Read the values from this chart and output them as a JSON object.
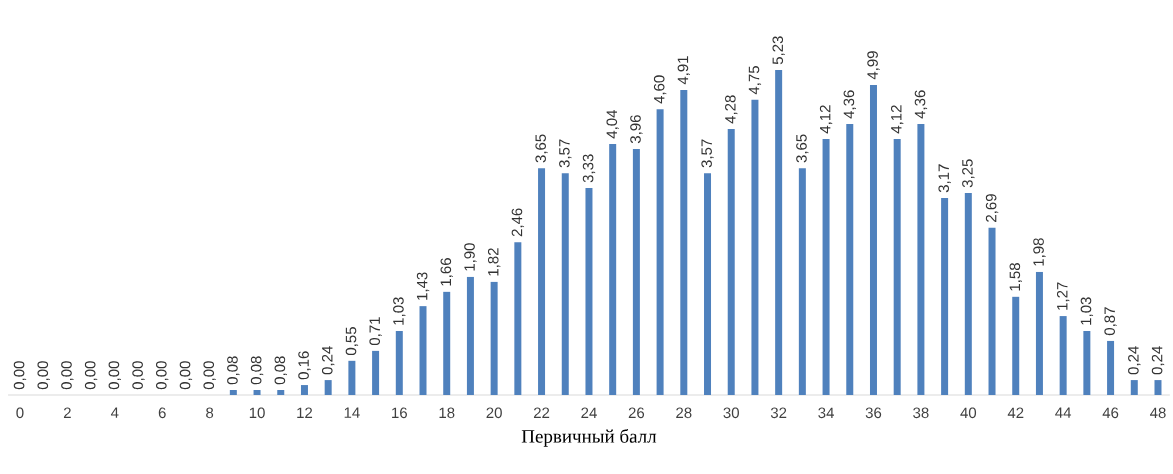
{
  "chart_data": {
    "type": "bar",
    "xlabel": "Первичный балл",
    "color": "#4f81bd",
    "categories": [
      "0",
      null,
      "2",
      null,
      "4",
      null,
      "6",
      null,
      "8",
      null,
      "10",
      null,
      "12",
      null,
      "14",
      null,
      "16",
      null,
      "18",
      null,
      "20",
      null,
      "22",
      null,
      "24",
      null,
      "26",
      null,
      "28",
      null,
      "30",
      null,
      "32",
      null,
      "34",
      null,
      "36",
      null,
      "38",
      null,
      "40",
      null,
      "42",
      null,
      "44",
      null,
      "46",
      null,
      "48"
    ],
    "values": [
      0,
      0,
      0,
      0,
      0,
      0,
      0,
      0,
      0,
      0.08,
      0.08,
      0.08,
      0.16,
      0.24,
      0.55,
      0.71,
      1.03,
      1.43,
      1.66,
      1.9,
      1.82,
      2.46,
      3.65,
      3.57,
      3.33,
      4.04,
      3.96,
      4.6,
      4.91,
      3.57,
      4.28,
      4.75,
      5.23,
      3.65,
      4.12,
      4.36,
      4.99,
      4.12,
      4.36,
      3.17,
      3.25,
      2.69,
      1.58,
      1.98,
      1.27,
      1.03,
      0.87,
      0.24,
      0.24
    ],
    "value_labels": [
      "0,00",
      "0,00",
      "0,00",
      "0,00",
      "0,00",
      "0,00",
      "0,00",
      "0,00",
      "0,00",
      "0,08",
      "0,08",
      "0,08",
      "0,16",
      "0,24",
      "0,55",
      "0,71",
      "1,03",
      "1,43",
      "1,66",
      "1,90",
      "1,82",
      "2,46",
      "3,65",
      "3,57",
      "3,33",
      "4,04",
      "3,96",
      "4,60",
      "4,91",
      "3,57",
      "4,28",
      "4,75",
      "5,23",
      "3,65",
      "4,12",
      "4,36",
      "4,99",
      "4,12",
      "4,36",
      "3,17",
      "3,25",
      "2,69",
      "1,58",
      "1,98",
      "1,27",
      "1,03",
      "0,87",
      "0,24",
      "0,24"
    ]
  }
}
